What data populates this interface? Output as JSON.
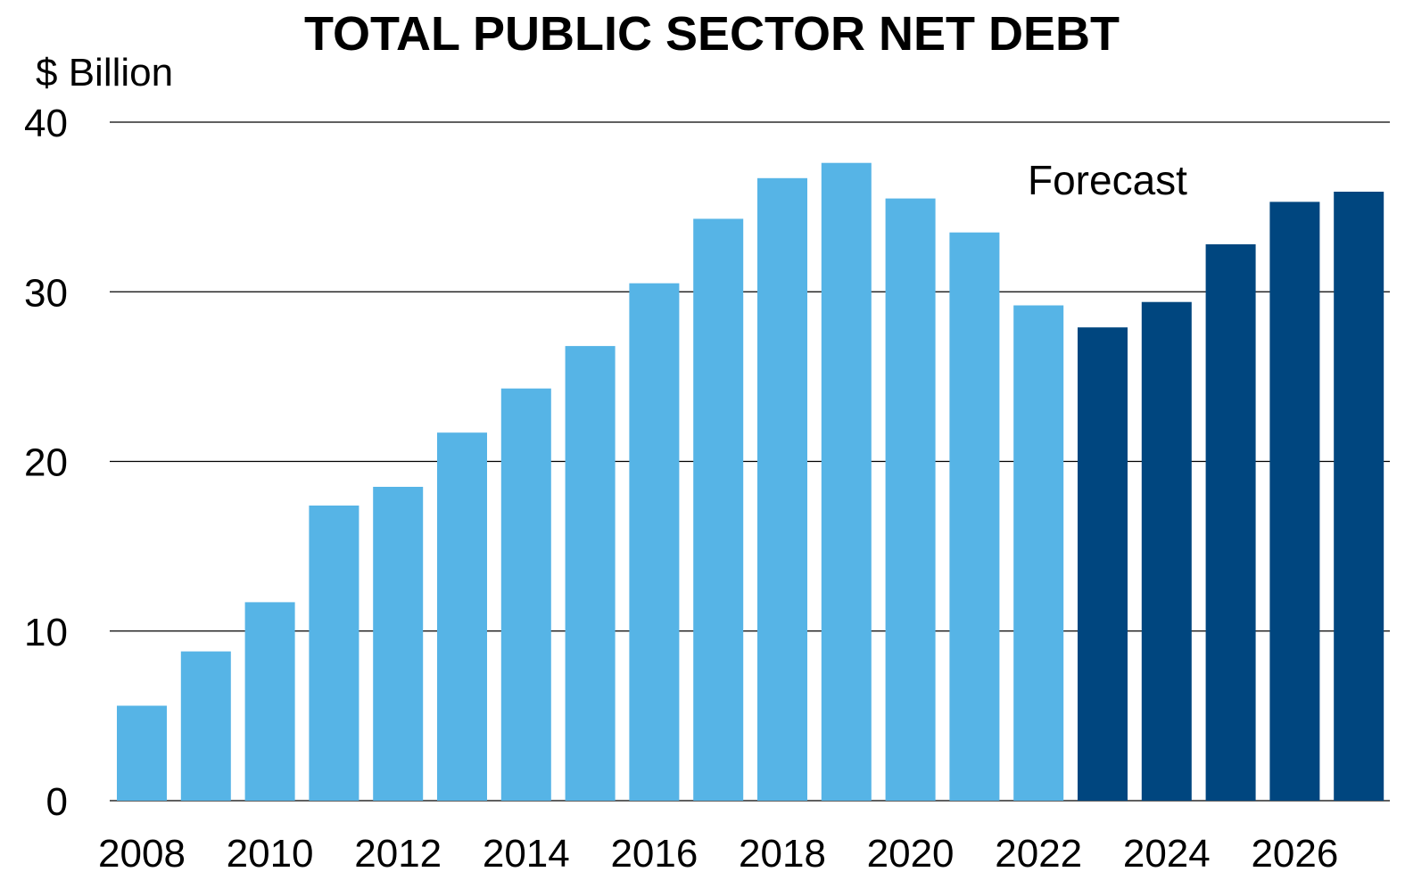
{
  "chart_data": {
    "type": "bar",
    "title": "TOTAL PUBLIC SECTOR NET DEBT",
    "ylabel": "$ Billion",
    "xlabel": "",
    "ylim": [
      0,
      40
    ],
    "yticks": [
      "0",
      "10",
      "20",
      "30",
      "40"
    ],
    "grid": true,
    "categories": [
      "2008",
      "2009",
      "2010",
      "2011",
      "2012",
      "2013",
      "2014",
      "2015",
      "2016",
      "2017",
      "2018",
      "2019",
      "2020",
      "2021",
      "2022",
      "2023",
      "2024",
      "2025",
      "2026",
      "2027"
    ],
    "x_tick_labels": [
      "2008",
      "2010",
      "2012",
      "2014",
      "2016",
      "2018",
      "2020",
      "2022",
      "2024",
      "2026"
    ],
    "values": [
      5.6,
      8.8,
      11.7,
      17.4,
      18.5,
      21.7,
      24.3,
      26.8,
      30.5,
      34.3,
      36.7,
      37.6,
      35.5,
      33.5,
      29.2,
      27.9,
      29.4,
      32.8,
      35.3,
      35.9
    ],
    "forecast_start_index": 15,
    "annotation": "Forecast",
    "colors": {
      "actual": "#56B4E6",
      "forecast": "#00467F"
    }
  }
}
